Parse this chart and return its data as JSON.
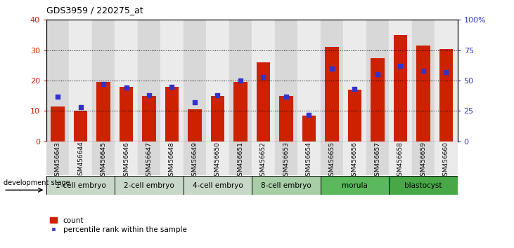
{
  "title": "GDS3959 / 220275_at",
  "samples": [
    "GSM456643",
    "GSM456644",
    "GSM456645",
    "GSM456646",
    "GSM456647",
    "GSM456648",
    "GSM456649",
    "GSM456650",
    "GSM456651",
    "GSM456652",
    "GSM456653",
    "GSM456654",
    "GSM456655",
    "GSM456656",
    "GSM456657",
    "GSM456658",
    "GSM456659",
    "GSM456660"
  ],
  "counts": [
    11.5,
    10.0,
    19.5,
    18.0,
    15.0,
    18.0,
    10.5,
    15.0,
    19.5,
    26.0,
    15.0,
    8.5,
    31.0,
    17.0,
    27.5,
    35.0,
    31.5,
    30.5
  ],
  "percentiles": [
    37,
    28,
    47,
    44,
    38,
    45,
    32,
    38,
    50,
    53,
    37,
    22,
    60,
    43,
    55,
    62,
    58,
    57
  ],
  "bar_color": "#CC2200",
  "pct_color": "#3333CC",
  "ylim_left": [
    0,
    40
  ],
  "ylim_right": [
    0,
    100
  ],
  "yticks_left": [
    0,
    10,
    20,
    30,
    40
  ],
  "yticks_right": [
    0,
    25,
    50,
    75,
    100
  ],
  "ytick_labels_right": [
    "0",
    "25",
    "50",
    "75",
    "100%"
  ],
  "stage_groups": [
    {
      "label": "1-cell embryo",
      "start": 0,
      "end": 3
    },
    {
      "label": "2-cell embryo",
      "start": 3,
      "end": 6
    },
    {
      "label": "4-cell embryo",
      "start": 6,
      "end": 9
    },
    {
      "label": "8-cell embryo",
      "start": 9,
      "end": 12
    },
    {
      "label": "morula",
      "start": 12,
      "end": 15
    },
    {
      "label": "blastocyst",
      "start": 15,
      "end": 18
    }
  ],
  "stage_colors": [
    "#C8D8C8",
    "#C8D8C8",
    "#C8D8C8",
    "#A8CEA8",
    "#5CB85C",
    "#48A848"
  ],
  "col_colors": [
    "#D8D8D8",
    "#E8E8E8"
  ]
}
